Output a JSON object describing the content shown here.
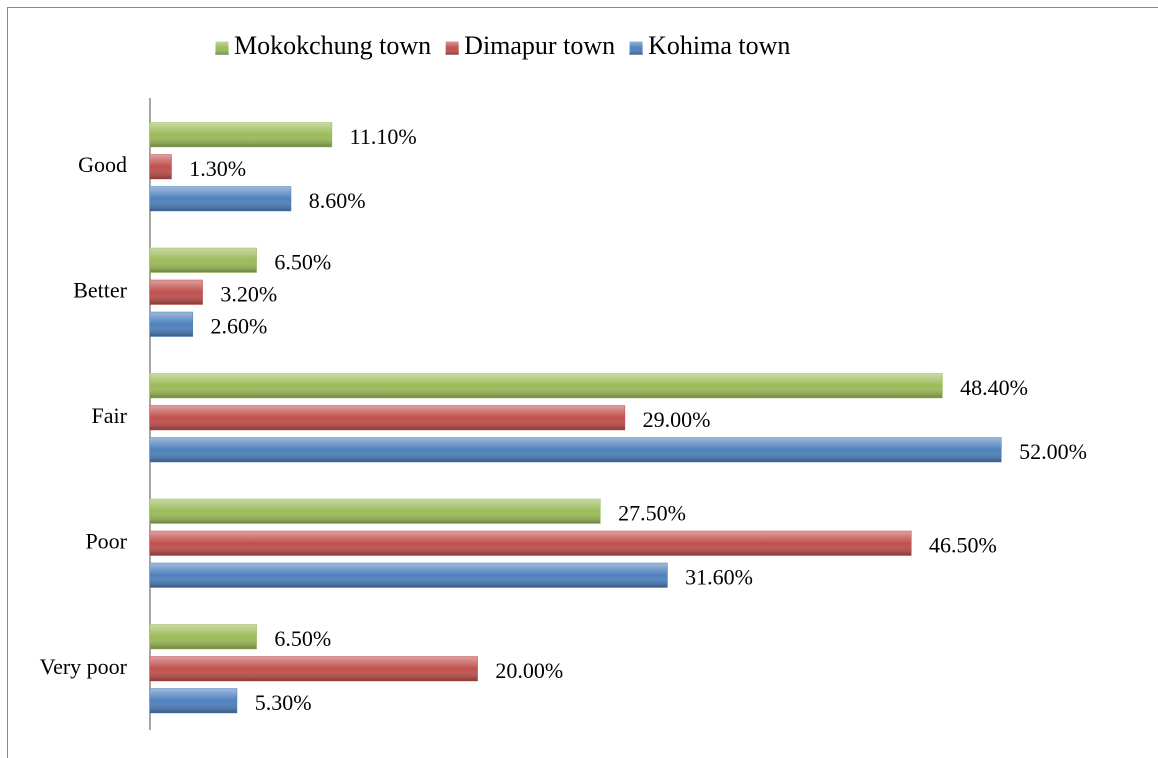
{
  "chart_data": {
    "type": "bar",
    "orientation": "horizontal",
    "categories": [
      "Good",
      "Better",
      "Fair",
      "Poor",
      "Very poor"
    ],
    "series": [
      {
        "name": "Mokokchung town",
        "color": "#9bbb59",
        "values": [
          11.1,
          6.5,
          48.4,
          27.5,
          6.5
        ],
        "value_labels": [
          "11.10%",
          "6.50%",
          "48.40%",
          "27.50%",
          "6.50%"
        ]
      },
      {
        "name": "Dimapur town",
        "color": "#c0504d",
        "values": [
          1.3,
          3.2,
          29.0,
          46.5,
          20.0
        ],
        "value_labels": [
          "1.30%",
          "3.20%",
          "29.00%",
          "46.50%",
          "20.00%"
        ]
      },
      {
        "name": "Kohima town",
        "color": "#4f81bd",
        "values": [
          8.6,
          2.6,
          52.0,
          31.6,
          5.3
        ],
        "value_labels": [
          "8.60%",
          "2.60%",
          "52.00%",
          "31.60%",
          "5.30%"
        ]
      }
    ],
    "xlim": [
      0,
      60
    ],
    "legend": "top"
  }
}
